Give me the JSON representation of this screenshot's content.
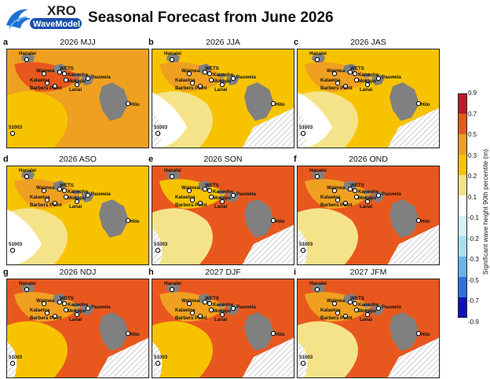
{
  "header": {
    "logo_top": "XRO",
    "logo_bottom": "WaveModel",
    "title": "Seasonal Forecast from June 2026"
  },
  "colors": {
    "land": "#808080",
    "ocean_low": "#ffffff",
    "c01_02": "#f5e38a",
    "c02_03": "#f7c300",
    "c03_05": "#f0a020",
    "c05_07": "#e8581e",
    "c07_09": "#c0182a",
    "neg": "#a8e0f0"
  },
  "stations": {
    "hanalei": "Hanalei",
    "waimea": "Waimea",
    "kalaeloa": "Kalaeloa",
    "wets": "WETS",
    "kaneohe": "Kaneohe",
    "mokapu": "Mokapu",
    "barbers_point": "Barbers Point",
    "lanai": "Lanai",
    "pauwela": "Pauwela",
    "hilo": "Hilo",
    "buoy": "51003"
  },
  "panels": [
    {
      "letter": "a",
      "title": "2026 MJJ"
    },
    {
      "letter": "b",
      "title": "2026 JJA"
    },
    {
      "letter": "c",
      "title": "2026 JAS"
    },
    {
      "letter": "d",
      "title": "2026 ASO"
    },
    {
      "letter": "e",
      "title": "2026 SON"
    },
    {
      "letter": "f",
      "title": "2026 OND"
    },
    {
      "letter": "g",
      "title": "2026 NDJ"
    },
    {
      "letter": "h",
      "title": "2027 DJF"
    },
    {
      "letter": "i",
      "title": "2027 JFM"
    }
  ],
  "colorbar": {
    "title": "Significant wave height 90th percentile (m)",
    "ticks": [
      "0.9",
      "0.7",
      "0.5",
      "0.3",
      "0.2",
      "0.1",
      "-0.1",
      "-0.2",
      "-0.3",
      "-0.5",
      "-0.7",
      "-0.9"
    ],
    "colors": [
      "#c0182a",
      "#e8581e",
      "#f0a020",
      "#f7c300",
      "#f5e38a",
      "#ffffff",
      "#d6f1f8",
      "#a8e0f0",
      "#6ab4e8",
      "#2f6fe0",
      "#1010c0"
    ]
  }
}
